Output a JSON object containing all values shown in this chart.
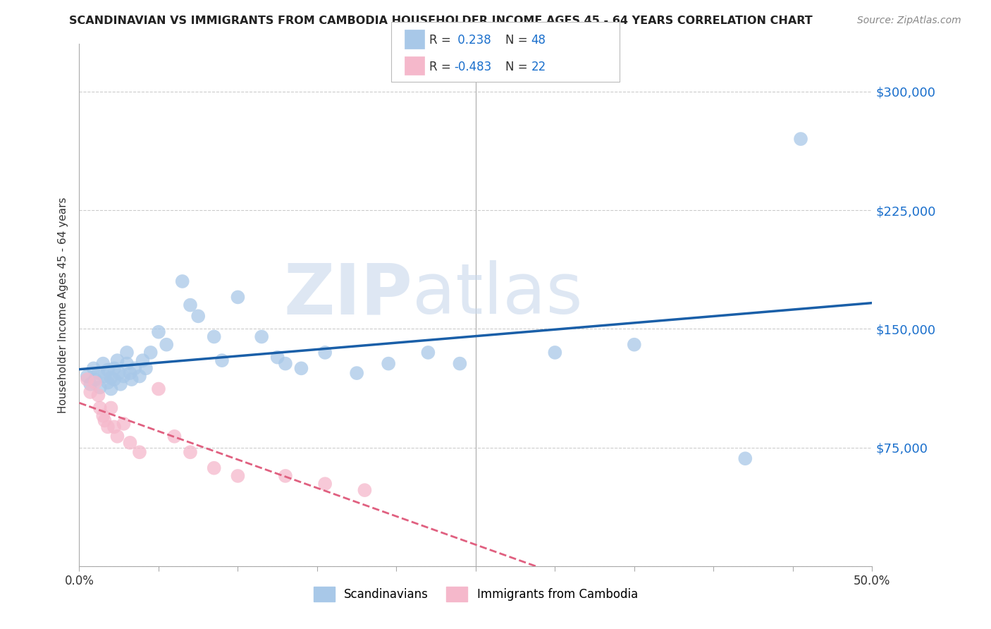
{
  "title": "SCANDINAVIAN VS IMMIGRANTS FROM CAMBODIA HOUSEHOLDER INCOME AGES 45 - 64 YEARS CORRELATION CHART",
  "source": "Source: ZipAtlas.com",
  "ylabel": "Householder Income Ages 45 - 64 years",
  "xlim": [
    0.0,
    0.5
  ],
  "ylim": [
    0,
    330000
  ],
  "yticks": [
    0,
    75000,
    150000,
    225000,
    300000
  ],
  "ytick_labels": [
    "",
    "$75,000",
    "$150,000",
    "$225,000",
    "$300,000"
  ],
  "xticks": [
    0.0,
    0.05,
    0.1,
    0.15,
    0.2,
    0.25,
    0.3,
    0.35,
    0.4,
    0.45,
    0.5
  ],
  "xtick_labels": [
    "0.0%",
    "",
    "",
    "",
    "",
    "",
    "",
    "",
    "",
    "",
    "50.0%"
  ],
  "legend_labels": [
    "Scandinavians",
    "Immigrants from Cambodia"
  ],
  "blue_R": 0.238,
  "blue_N": 48,
  "pink_R": -0.483,
  "pink_N": 22,
  "blue_color": "#a8c8e8",
  "pink_color": "#f5b8cb",
  "blue_line_color": "#1a5fa8",
  "pink_line_color": "#e06080",
  "watermark_zip": "ZIP",
  "watermark_atlas": "atlas",
  "blue_scatter_x": [
    0.005,
    0.007,
    0.009,
    0.01,
    0.012,
    0.013,
    0.015,
    0.016,
    0.018,
    0.018,
    0.02,
    0.02,
    0.022,
    0.022,
    0.024,
    0.025,
    0.026,
    0.028,
    0.03,
    0.03,
    0.032,
    0.033,
    0.035,
    0.038,
    0.04,
    0.042,
    0.045,
    0.05,
    0.055,
    0.065,
    0.07,
    0.075,
    0.085,
    0.09,
    0.1,
    0.115,
    0.125,
    0.13,
    0.14,
    0.155,
    0.175,
    0.195,
    0.22,
    0.24,
    0.3,
    0.35,
    0.42,
    0.455
  ],
  "blue_scatter_y": [
    120000,
    115000,
    125000,
    118000,
    122000,
    113000,
    128000,
    120000,
    116000,
    124000,
    119000,
    112000,
    125000,
    118000,
    130000,
    122000,
    115000,
    120000,
    135000,
    128000,
    122000,
    118000,
    125000,
    120000,
    130000,
    125000,
    135000,
    148000,
    140000,
    180000,
    165000,
    158000,
    145000,
    130000,
    170000,
    145000,
    132000,
    128000,
    125000,
    135000,
    122000,
    128000,
    135000,
    128000,
    135000,
    140000,
    68000,
    270000
  ],
  "pink_scatter_x": [
    0.005,
    0.007,
    0.01,
    0.012,
    0.013,
    0.015,
    0.016,
    0.018,
    0.02,
    0.022,
    0.024,
    0.028,
    0.032,
    0.038,
    0.05,
    0.06,
    0.07,
    0.085,
    0.1,
    0.13,
    0.155,
    0.18
  ],
  "pink_scatter_y": [
    118000,
    110000,
    116000,
    108000,
    100000,
    95000,
    92000,
    88000,
    100000,
    88000,
    82000,
    90000,
    78000,
    72000,
    112000,
    82000,
    72000,
    62000,
    57000,
    57000,
    52000,
    48000
  ]
}
